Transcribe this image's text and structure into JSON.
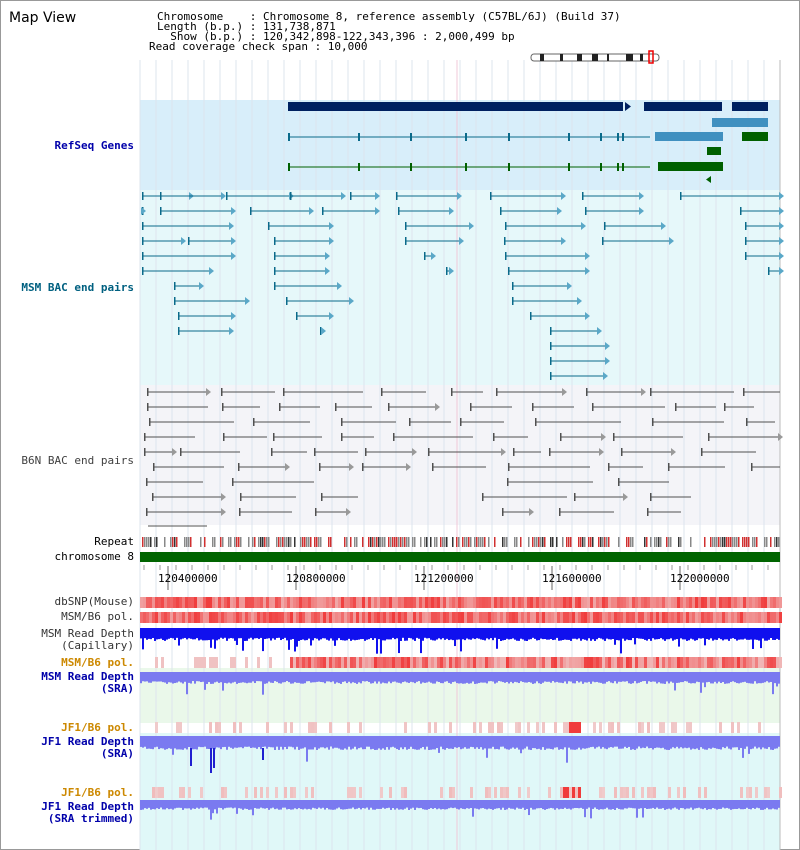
{
  "title": "Map View",
  "header": {
    "chromosome_line": "Chromosome    : Chromosome 8, reference assembly (C57BL/6J) (Build 37)",
    "length_line": "Length (b.p.) : 131,738,871",
    "show_line": "  Show (b.p.) : 120,342,898-122,343,396 : 2,000,499 bp",
    "coverage_line": "Read coverage check span : 10,000"
  },
  "tracks": {
    "refseq": {
      "label": "RefSeq Genes",
      "color": "#0000aa"
    },
    "msm_bac": {
      "label": "MSM BAC end pairs",
      "color": "#006080"
    },
    "b6n_bac": {
      "label": "B6N BAC end pairs",
      "color": "#404040"
    },
    "repeat": {
      "label": "Repeat"
    },
    "chromosome": {
      "label": "chromosome 8"
    },
    "dbsnp": {
      "label": "dbSNP(Mouse)"
    },
    "msm_b6_pol": {
      "label": "MSM/B6 pol."
    },
    "msm_depth_cap": {
      "label": "MSM Read Depth\n(Capillary)"
    },
    "msm_b6_pol_sra": {
      "label": "MSM/B6 pol.",
      "color": "#cc8800"
    },
    "msm_depth_sra": {
      "label": "MSM Read Depth\n(SRA)",
      "color": "#0000aa"
    },
    "jf1_b6_pol": {
      "label": "JF1/B6 pol.",
      "color": "#cc8800"
    },
    "jf1_depth_sra": {
      "label": "JF1 Read Depth\n(SRA)",
      "color": "#0000aa"
    },
    "jf1_b6_pol_trim": {
      "label": "JF1/B6 pol.",
      "color": "#cc8800"
    },
    "jf1_depth_trim": {
      "label": "JF1 Read Depth\n(SRA trimmed)",
      "color": "#0000aa"
    }
  },
  "axis": {
    "ticks": [
      "120400000",
      "120800000",
      "121200000",
      "121600000",
      "122000000"
    ]
  },
  "colors": {
    "gene_dark": "#002060",
    "gene_blue": "#4090c0",
    "gene_green": "#006000",
    "msm_line": "#0a6a8a",
    "b6n_line": "#505050",
    "chromosome_bar": "#006400",
    "depth_blue": "#1010ee",
    "depth_light": "#7a7af0",
    "snp_red": "#f04040"
  }
}
